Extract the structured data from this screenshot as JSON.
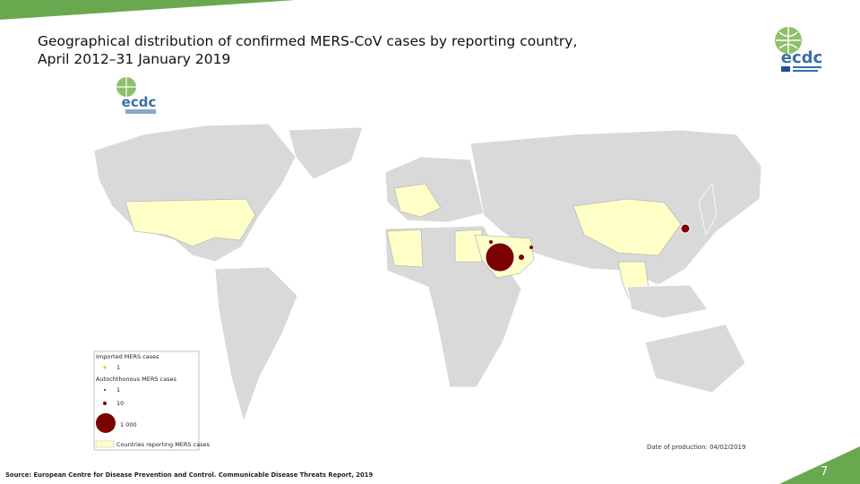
{
  "header": {
    "title_line1": "Geographical distribution of confirmed MERS-CoV cases by reporting country,",
    "title_line2": "April 2012–31 January 2019",
    "logo": "ecdc"
  },
  "map": {
    "logo": "ecdc",
    "legend": {
      "imported_heading": "Imported MERS cases",
      "imported_item": "1",
      "autochthonous_heading": "Autochthonous MERS cases",
      "items": [
        "1",
        "10",
        "1 000"
      ],
      "countries_item": "Countries reporting MERS cases"
    },
    "date_of_production": "Date of production: 04/02/2019"
  },
  "footer": {
    "source": "Source: European Centre for Disease Prevention and Control. Communicable Disease Threats Report, 2019",
    "page_number": "7"
  }
}
